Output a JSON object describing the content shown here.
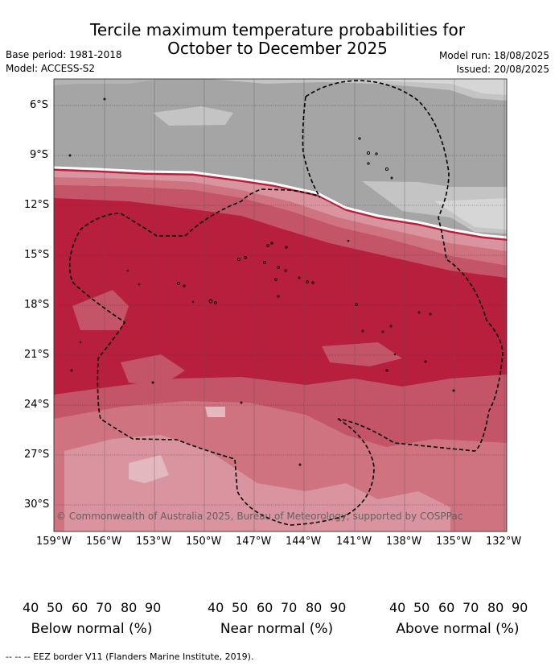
{
  "header": {
    "title_line1": "Tercile maximum temperature probabilities for",
    "title_line2": "October to December 2025",
    "base_period": "Base period: 1981-2018",
    "model": "Model: ACCESS-S2",
    "model_run": "Model run: 18/08/2025",
    "issued": "Issued: 20/08/2025"
  },
  "map": {
    "lat_labels": [
      "6°S",
      "9°S",
      "12°S",
      "15°S",
      "18°S",
      "21°S",
      "24°S",
      "27°S",
      "30°S"
    ],
    "lon_labels": [
      "159°W",
      "156°W",
      "153°W",
      "150°W",
      "147°W",
      "144°W",
      "141°W",
      "138°W",
      "135°W",
      "132°W"
    ],
    "copyright": "© Commonwealth of Australia 2025, Bureau of Meteorology, supported by COSPPac"
  },
  "legend": {
    "below": {
      "label": "Below normal (%)",
      "ticks": [
        "40",
        "50",
        "60",
        "70",
        "80",
        "90"
      ],
      "colors": [
        "#cfe5ea",
        "#a9cbd2",
        "#88b9c4",
        "#6aadbb",
        "#459faf"
      ]
    },
    "near": {
      "label": "Near normal (%)",
      "ticks": [
        "40",
        "50",
        "60",
        "70",
        "80",
        "90"
      ],
      "colors": [
        "#e9e9e9",
        "#d6d6d6",
        "#c4c4c4",
        "#b3b3b3",
        "#a2a2a2"
      ]
    },
    "above": {
      "label": "Above normal (%)",
      "ticks": [
        "40",
        "50",
        "60",
        "70",
        "80",
        "90"
      ],
      "colors": [
        "#e3b8bf",
        "#d9949f",
        "#cf7380",
        "#c45468",
        "#b71f3d"
      ]
    }
  },
  "footer": "-- -- -- EEZ border V11 (Flanders Marine Institute, 2019)."
}
